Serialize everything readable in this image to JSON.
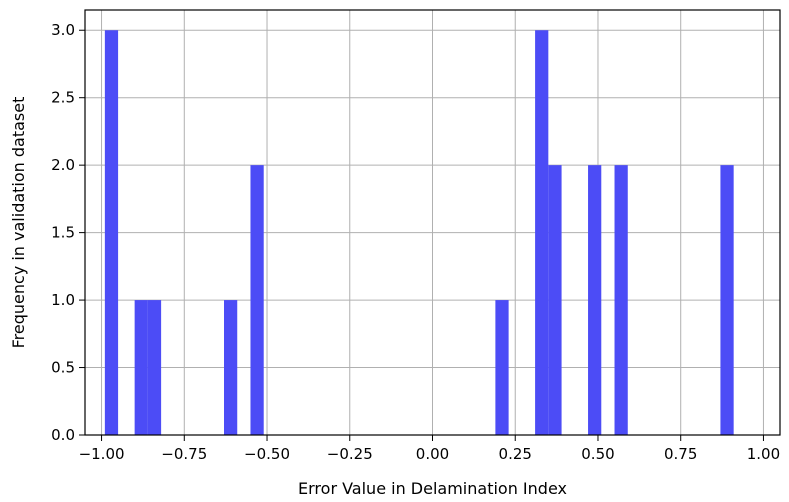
{
  "chart_data": {
    "type": "bar",
    "xlabel": "Error Value in Delamination Index",
    "ylabel": "Frequency in validation dataset",
    "xlim": [
      -1.05,
      1.05
    ],
    "ylim": [
      0,
      3.15
    ],
    "grid": true,
    "bar_color": "#4c4cf6",
    "bin_width": 0.04,
    "xticks": [
      -1.0,
      -0.75,
      -0.5,
      -0.25,
      0.0,
      0.25,
      0.5,
      0.75,
      1.0
    ],
    "xtick_labels": [
      "−1.00",
      "−0.75",
      "−0.50",
      "−0.25",
      "0.00",
      "0.25",
      "0.50",
      "0.75",
      "1.00"
    ],
    "yticks": [
      0.0,
      0.5,
      1.0,
      1.5,
      2.0,
      2.5,
      3.0
    ],
    "ytick_labels": [
      "0.0",
      "0.5",
      "1.0",
      "1.5",
      "2.0",
      "2.5",
      "3.0"
    ],
    "bars": [
      {
        "x": -0.97,
        "value": 3
      },
      {
        "x": -0.88,
        "value": 1
      },
      {
        "x": -0.84,
        "value": 1
      },
      {
        "x": -0.61,
        "value": 1
      },
      {
        "x": -0.53,
        "value": 2
      },
      {
        "x": 0.21,
        "value": 1
      },
      {
        "x": 0.33,
        "value": 3
      },
      {
        "x": 0.37,
        "value": 2
      },
      {
        "x": 0.49,
        "value": 2
      },
      {
        "x": 0.57,
        "value": 2
      },
      {
        "x": 0.89,
        "value": 2
      }
    ]
  }
}
